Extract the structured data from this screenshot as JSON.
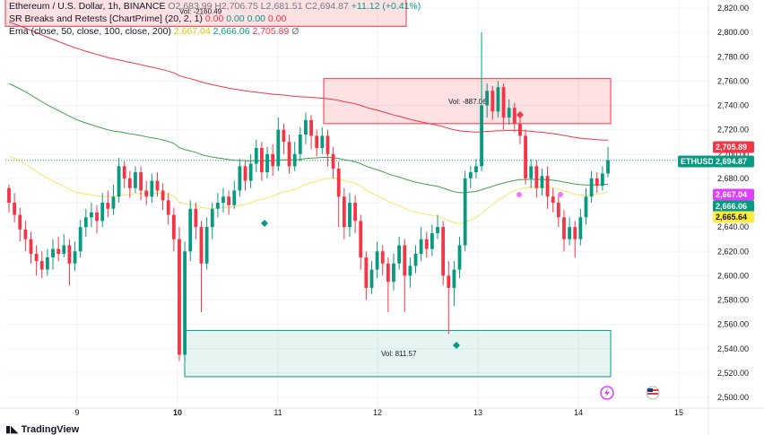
{
  "legend": {
    "symbol": "Ethereum / U.S. Dollar, 1h, BINANCE",
    "ohlc_open": "O2,683.99",
    "ohlc_high": "H2,706.75",
    "ohlc_low": "L2,681.51",
    "ohlc_close": "C2,694.87",
    "ohlc_change": "+11.12 (+0.41%)",
    "sr_label": "SR Breaks and Retests [ChartPrime] (20, 2, 1)",
    "sr_values": [
      "0.00",
      "0.00",
      "0.00",
      "0.00"
    ],
    "ema_label": "Ema (close, 50, close, 100, close, 200)",
    "ema_v1": "2,667.04",
    "ema_v2": "2,666.06",
    "ema_v3": "2,705.89",
    "ema_symbol": "Ø"
  },
  "boxes": {
    "top_left_vol": "Vol: -2160.49",
    "resistance_vol": "Vol: -887.06",
    "support_vol": "Vol: 811.57"
  },
  "price_scale": {
    "ticks": [
      "2,820.00",
      "2,800.00",
      "2,780.00",
      "2,760.00",
      "2,740.00",
      "2,720.00",
      "2,700.00",
      "2,680.00",
      "2,660.00",
      "2,640.00",
      "2,620.00",
      "2,600.00",
      "2,580.00",
      "2,560.00",
      "2,540.00",
      "2,520.00",
      "2,500.00"
    ],
    "labels": {
      "ema200": "2,705.89",
      "symbol": "ETHUSD",
      "last": "2,694.87",
      "ema50": "2,667.04",
      "ema100": "2,666.06",
      "yellow": "2,665.64"
    },
    "colors": {
      "red": "#f23645",
      "green": "#089981",
      "magenta": "#e040fb",
      "yellow": "#ffeb3b"
    }
  },
  "time_scale": {
    "ticks": [
      "9",
      "10",
      "11",
      "12",
      "13",
      "14",
      "15"
    ]
  },
  "branding": {
    "name": "TradingView"
  },
  "chart_data": {
    "type": "candlestick",
    "ylim": [
      2500,
      2820
    ],
    "x_ticks": [
      "9",
      "10",
      "11",
      "12",
      "13",
      "14",
      "15"
    ],
    "candles": [
      [
        2672,
        2660,
        2675,
        2652
      ],
      [
        2660,
        2650,
        2668,
        2644
      ],
      [
        2650,
        2638,
        2656,
        2628
      ],
      [
        2638,
        2630,
        2645,
        2620
      ],
      [
        2630,
        2618,
        2636,
        2610
      ],
      [
        2618,
        2612,
        2625,
        2600
      ],
      [
        2612,
        2605,
        2620,
        2598
      ],
      [
        2605,
        2615,
        2622,
        2600
      ],
      [
        2615,
        2622,
        2630,
        2605
      ],
      [
        2622,
        2618,
        2632,
        2612
      ],
      [
        2618,
        2625,
        2634,
        2615
      ],
      [
        2625,
        2610,
        2630,
        2592
      ],
      [
        2610,
        2620,
        2628,
        2604
      ],
      [
        2620,
        2640,
        2646,
        2615
      ],
      [
        2640,
        2648,
        2655,
        2632
      ],
      [
        2648,
        2652,
        2660,
        2640
      ],
      [
        2652,
        2645,
        2658,
        2635
      ],
      [
        2645,
        2660,
        2668,
        2640
      ],
      [
        2660,
        2655,
        2670,
        2648
      ],
      [
        2655,
        2665,
        2675,
        2650
      ],
      [
        2665,
        2690,
        2697,
        2660
      ],
      [
        2690,
        2680,
        2694,
        2672
      ],
      [
        2680,
        2672,
        2686,
        2664
      ],
      [
        2672,
        2685,
        2690,
        2668
      ],
      [
        2685,
        2670,
        2690,
        2662
      ],
      [
        2670,
        2665,
        2678,
        2658
      ],
      [
        2665,
        2678,
        2684,
        2660
      ],
      [
        2678,
        2670,
        2685,
        2665
      ],
      [
        2670,
        2662,
        2676,
        2654
      ],
      [
        2662,
        2650,
        2668,
        2642
      ],
      [
        2650,
        2630,
        2656,
        2620
      ],
      [
        2630,
        2535,
        2640,
        2530
      ],
      [
        2535,
        2620,
        2628,
        2530
      ],
      [
        2620,
        2655,
        2662,
        2612
      ],
      [
        2655,
        2640,
        2660,
        2630
      ],
      [
        2640,
        2610,
        2645,
        2570
      ],
      [
        2610,
        2640,
        2648,
        2605
      ],
      [
        2640,
        2655,
        2660,
        2630
      ],
      [
        2655,
        2660,
        2668,
        2648
      ],
      [
        2660,
        2665,
        2672,
        2652
      ],
      [
        2665,
        2658,
        2670,
        2650
      ],
      [
        2658,
        2670,
        2678,
        2655
      ],
      [
        2670,
        2690,
        2696,
        2665
      ],
      [
        2690,
        2678,
        2694,
        2670
      ],
      [
        2678,
        2692,
        2700,
        2672
      ],
      [
        2692,
        2705,
        2712,
        2685
      ],
      [
        2705,
        2685,
        2710,
        2678
      ],
      [
        2685,
        2700,
        2706,
        2680
      ],
      [
        2700,
        2690,
        2708,
        2682
      ],
      [
        2690,
        2720,
        2730,
        2686
      ],
      [
        2720,
        2710,
        2725,
        2700
      ],
      [
        2710,
        2690,
        2716,
        2684
      ],
      [
        2690,
        2700,
        2710,
        2686
      ],
      [
        2700,
        2716,
        2722,
        2694
      ],
      [
        2716,
        2728,
        2734,
        2708
      ],
      [
        2728,
        2715,
        2732,
        2704
      ],
      [
        2715,
        2705,
        2720,
        2698
      ],
      [
        2705,
        2715,
        2722,
        2700
      ],
      [
        2715,
        2700,
        2720,
        2690
      ],
      [
        2700,
        2688,
        2706,
        2680
      ],
      [
        2688,
        2665,
        2694,
        2640
      ],
      [
        2665,
        2640,
        2672,
        2630
      ],
      [
        2640,
        2660,
        2668,
        2632
      ],
      [
        2660,
        2645,
        2666,
        2635
      ],
      [
        2645,
        2615,
        2650,
        2605
      ],
      [
        2615,
        2590,
        2620,
        2580
      ],
      [
        2590,
        2605,
        2612,
        2585
      ],
      [
        2605,
        2620,
        2628,
        2598
      ],
      [
        2620,
        2610,
        2625,
        2600
      ],
      [
        2610,
        2595,
        2615,
        2570
      ],
      [
        2595,
        2610,
        2618,
        2588
      ],
      [
        2610,
        2625,
        2632,
        2605
      ],
      [
        2625,
        2600,
        2630,
        2570
      ],
      [
        2600,
        2608,
        2615,
        2590
      ],
      [
        2608,
        2618,
        2625,
        2602
      ],
      [
        2618,
        2630,
        2640,
        2612
      ],
      [
        2630,
        2622,
        2636,
        2615
      ],
      [
        2622,
        2635,
        2642,
        2616
      ],
      [
        2635,
        2640,
        2650,
        2630
      ],
      [
        2640,
        2600,
        2645,
        2592
      ],
      [
        2600,
        2590,
        2612,
        2552
      ],
      [
        2590,
        2605,
        2612,
        2575
      ],
      [
        2605,
        2625,
        2632,
        2598
      ],
      [
        2625,
        2680,
        2686,
        2620
      ],
      [
        2680,
        2685,
        2690,
        2672
      ],
      [
        2685,
        2690,
        2696,
        2680
      ],
      [
        2690,
        2740,
        2800,
        2686
      ],
      [
        2740,
        2752,
        2758,
        2730
      ],
      [
        2752,
        2735,
        2756,
        2728
      ],
      [
        2735,
        2755,
        2760,
        2730
      ],
      [
        2755,
        2730,
        2758,
        2720
      ],
      [
        2730,
        2738,
        2745,
        2724
      ],
      [
        2738,
        2725,
        2742,
        2718
      ],
      [
        2725,
        2715,
        2730,
        2708
      ],
      [
        2715,
        2680,
        2720,
        2675
      ],
      [
        2680,
        2690,
        2696,
        2672
      ],
      [
        2690,
        2672,
        2695,
        2664
      ],
      [
        2672,
        2682,
        2688,
        2666
      ],
      [
        2682,
        2665,
        2690,
        2655
      ],
      [
        2665,
        2660,
        2672,
        2652
      ],
      [
        2660,
        2648,
        2665,
        2640
      ],
      [
        2648,
        2630,
        2654,
        2620
      ],
      [
        2630,
        2640,
        2648,
        2625
      ],
      [
        2640,
        2630,
        2645,
        2615
      ],
      [
        2630,
        2648,
        2655,
        2625
      ],
      [
        2648,
        2665,
        2672,
        2642
      ],
      [
        2665,
        2680,
        2686,
        2660
      ],
      [
        2680,
        2674,
        2685,
        2668
      ],
      [
        2674,
        2684,
        2690,
        2670
      ],
      [
        2684,
        2695,
        2706,
        2681
      ]
    ],
    "sr_boxes": [
      {
        "label": "Vol: -2160.49",
        "y_top": 2830,
        "y_bottom": 2805,
        "kind": "resistance"
      },
      {
        "label": "Vol: -887.06",
        "y_top": 2762,
        "y_bottom": 2725,
        "kind": "resistance"
      },
      {
        "label": "Vol: 811.57",
        "y_top": 2555,
        "y_bottom": 2517,
        "kind": "support"
      }
    ],
    "ema50_last": 2667.04,
    "ema100_last": 2666.06,
    "ema200_last": 2705.89,
    "last_price": 2694.87
  }
}
